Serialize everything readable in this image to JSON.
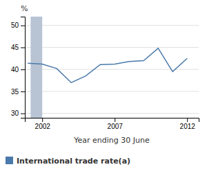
{
  "chart_data": {
    "type": "line",
    "xlabel": "Year ending 30 June",
    "ylabel": "%",
    "x": [
      2001,
      2002,
      2003,
      2004,
      2005,
      2006,
      2007,
      2008,
      2009,
      2010,
      2011,
      2012
    ],
    "series": [
      {
        "name": "International trade rate(a)",
        "color": "#4a7aab",
        "values": [
          41.4,
          41.2,
          40.2,
          37.0,
          38.5,
          41.1,
          41.2,
          41.8,
          42.0,
          44.8,
          39.5,
          42.5
        ]
      }
    ],
    "shaded_region": {
      "x": [
        2001.2,
        2002.0
      ],
      "color": "#b8c4d4"
    },
    "xlim": [
      2000.8,
      2012.8
    ],
    "xticks": [
      2002,
      2007,
      2012
    ],
    "ylim": [
      29,
      52
    ],
    "yticks": [
      30,
      35,
      40,
      45,
      50
    ],
    "grid": true,
    "legend": "bottom"
  }
}
